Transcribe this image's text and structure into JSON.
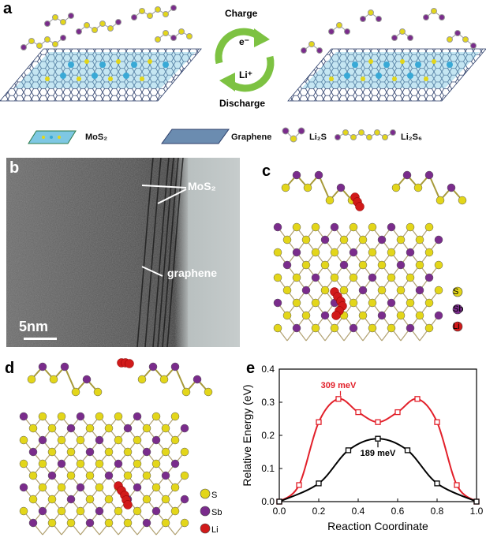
{
  "panel_a": {
    "letter": "a",
    "charge_label": "Charge",
    "discharge_label": "Discharge",
    "electron_label": "e⁻",
    "li_ion_label": "Li⁺",
    "legend": [
      "MoS₂",
      "Graphene",
      "Li₂S",
      "Li₂S₆"
    ]
  },
  "panel_b": {
    "letter": "b",
    "label_mos2": "MoS₂",
    "label_graphene": "graphene",
    "scale_bar": "5nm"
  },
  "panel_c": {
    "letter": "c",
    "legend": [
      "S",
      "Sb",
      "Li"
    ]
  },
  "panel_d": {
    "letter": "d",
    "legend": [
      "S",
      "Sb",
      "Li"
    ]
  },
  "panel_e": {
    "letter": "e",
    "annotation_red": "309 meV",
    "annotation_black": "189 meV"
  },
  "colors": {
    "sulfur": "#e3d61a",
    "antimony": "#7a2c8c",
    "lithium": "#d11a1a",
    "mo_blue": "#39a9d6",
    "arrow_green": "#7dc242",
    "red_curve": "#e2202a",
    "black_curve": "#000000"
  },
  "chart_data": {
    "type": "line",
    "xlabel": "Reaction Coordinate",
    "ylabel": "Relative Energy (eV)",
    "xlim": [
      0.0,
      1.0
    ],
    "ylim": [
      0.0,
      0.4
    ],
    "xticks": [
      "0.0",
      "0.2",
      "0.4",
      "0.6",
      "0.8",
      "1.0"
    ],
    "yticks": [
      "0.0",
      "0.1",
      "0.2",
      "0.3",
      "0.4"
    ],
    "grid": false,
    "series": [
      {
        "color": "#e2202a",
        "marker": "open-square",
        "x": [
          0.0,
          0.1,
          0.2,
          0.3,
          0.4,
          0.5,
          0.6,
          0.7,
          0.8,
          0.9,
          1.0
        ],
        "y": [
          0.0,
          0.05,
          0.24,
          0.31,
          0.27,
          0.24,
          0.27,
          0.31,
          0.24,
          0.05,
          0.0
        ]
      },
      {
        "color": "#000000",
        "marker": "open-square",
        "x": [
          0.0,
          0.2,
          0.35,
          0.5,
          0.65,
          0.8,
          1.0
        ],
        "y": [
          0.0,
          0.055,
          0.155,
          0.19,
          0.155,
          0.055,
          0.0
        ]
      }
    ]
  }
}
